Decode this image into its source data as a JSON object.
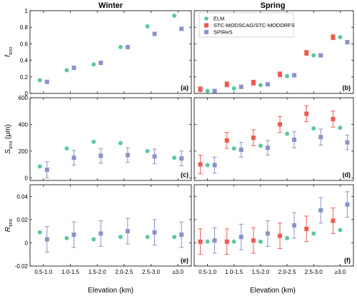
{
  "chart_data": {
    "type": "scatter",
    "column_titles": [
      "Winter",
      "Spring"
    ],
    "xlabel": "Elevation (km)",
    "categories": [
      "0.5-1.0",
      "1.0-1.5",
      "1.5-2.0",
      "2.0-2.5",
      "2.5-3.0",
      "≥3.0"
    ],
    "legend": {
      "placement": "top-left of Spring panel (b)",
      "entries": [
        "ELM",
        "STC-MODSCAG/STC-MODDRFS",
        "SPIReS"
      ]
    },
    "colors": {
      "ELM": "#5cc8a0",
      "STC-MODSCAG/STC-MODDRFS": "#ee5a4f",
      "SPIReS": "#8b93c7"
    },
    "rows": [
      {
        "ylabel_main": "f",
        "ylabel_sub": "sno",
        "ylim": [
          0,
          1
        ],
        "yticks": [
          0,
          0.2,
          0.4,
          0.6,
          0.8,
          1
        ],
        "ytick_labels": [
          "0",
          "0.2",
          "0.4",
          "0.6",
          "0.8",
          "1"
        ],
        "panels": [
          {
            "label": "(a)",
            "series": [
              {
                "name": "ELM",
                "values": [
                  0.16,
                  0.28,
                  0.35,
                  0.56,
                  0.81,
                  0.94
                ]
              },
              {
                "name": "SPIReS",
                "values": [
                  0.14,
                  0.31,
                  0.37,
                  0.56,
                  0.72,
                  0.78
                ],
                "err": [
                  0.02,
                  0.02,
                  0.02,
                  0.02,
                  0.02,
                  0.02
                ]
              }
            ]
          },
          {
            "label": "(b)",
            "series": [
              {
                "name": "STC-MODSCAG/STC-MODDRFS",
                "values": [
                  0.05,
                  0.11,
                  0.13,
                  0.23,
                  0.49,
                  0.68
                ],
                "err": [
                  0.03,
                  0.03,
                  0.03,
                  0.03,
                  0.03,
                  0.03
                ]
              },
              {
                "name": "ELM",
                "values": [
                  0.03,
                  0.06,
                  0.1,
                  0.21,
                  0.46,
                  0.68
                ]
              },
              {
                "name": "SPIReS",
                "values": [
                  0.03,
                  0.08,
                  0.11,
                  0.22,
                  0.46,
                  0.62
                ],
                "err": [
                  0.02,
                  0.02,
                  0.02,
                  0.02,
                  0.02,
                  0.02
                ]
              }
            ]
          }
        ]
      },
      {
        "ylabel_main": "S",
        "ylabel_sub": "sno",
        "ylabel_suffix": " (μm)",
        "ylim": [
          -20,
          600
        ],
        "yticks": [
          0,
          200,
          400,
          600
        ],
        "ytick_labels": [
          "0",
          "200",
          "400",
          "600"
        ],
        "panels": [
          {
            "label": "(c)",
            "series": [
              {
                "name": "ELM",
                "values": [
                  85,
                  220,
                  270,
                  260,
                  200,
                  150
                ]
              },
              {
                "name": "SPIReS",
                "values": [
                  60,
                  150,
                  165,
                  170,
                  160,
                  145
                ],
                "err": [
                  60,
                  55,
                  55,
                  55,
                  55,
                  55
                ]
              }
            ]
          },
          {
            "label": "(d)",
            "series": [
              {
                "name": "STC-MODSCAG/STC-MODDRFS",
                "values": [
                  100,
                  280,
                  300,
                  400,
                  480,
                  440
                ],
                "err": [
                  70,
                  60,
                  60,
                  60,
                  60,
                  60
                ]
              },
              {
                "name": "ELM",
                "values": [
                  95,
                  220,
                  240,
                  330,
                  370,
                  375
                ]
              },
              {
                "name": "SPIReS",
                "values": [
                  95,
                  210,
                  225,
                  285,
                  305,
                  265
                ],
                "err": [
                  60,
                  55,
                  55,
                  60,
                  60,
                  55
                ]
              }
            ]
          }
        ]
      },
      {
        "ylabel_main": "R",
        "ylabel_sub": "sno",
        "ylim": [
          -0.02,
          0.05
        ],
        "yticks": [
          -0.02,
          0,
          0.02,
          0.04
        ],
        "ytick_labels": [
          "-0.02",
          "0",
          "0.02",
          "0.04"
        ],
        "panels": [
          {
            "label": "(e)",
            "series": [
              {
                "name": "ELM",
                "values": [
                  0.009,
                  0.004,
                  0.003,
                  0.005,
                  0.005,
                  0.005
                ]
              },
              {
                "name": "SPIReS",
                "values": [
                  0.003,
                  0.007,
                  0.008,
                  0.01,
                  0.009,
                  0.007
                ],
                "err": [
                  0.011,
                  0.011,
                  0.011,
                  0.011,
                  0.011,
                  0.011
                ]
              }
            ]
          },
          {
            "label": "(f)",
            "series": [
              {
                "name": "STC-MODSCAG/STC-MODDRFS",
                "values": [
                  0.001,
                  0.001,
                  0.002,
                  0.006,
                  0.012,
                  0.019
                ],
                "err": [
                  0.011,
                  0.011,
                  0.011,
                  0.011,
                  0.011,
                  0.011
                ]
              },
              {
                "name": "ELM",
                "values": [
                  0.001,
                  0.001,
                  0.001,
                  0.004,
                  0.008,
                  0.011
                ]
              },
              {
                "name": "SPIReS",
                "values": [
                  0.002,
                  0.005,
                  0.008,
                  0.015,
                  0.028,
                  0.033
                ],
                "err": [
                  0.011,
                  0.011,
                  0.011,
                  0.011,
                  0.011,
                  0.011
                ]
              }
            ]
          }
        ]
      }
    ]
  }
}
